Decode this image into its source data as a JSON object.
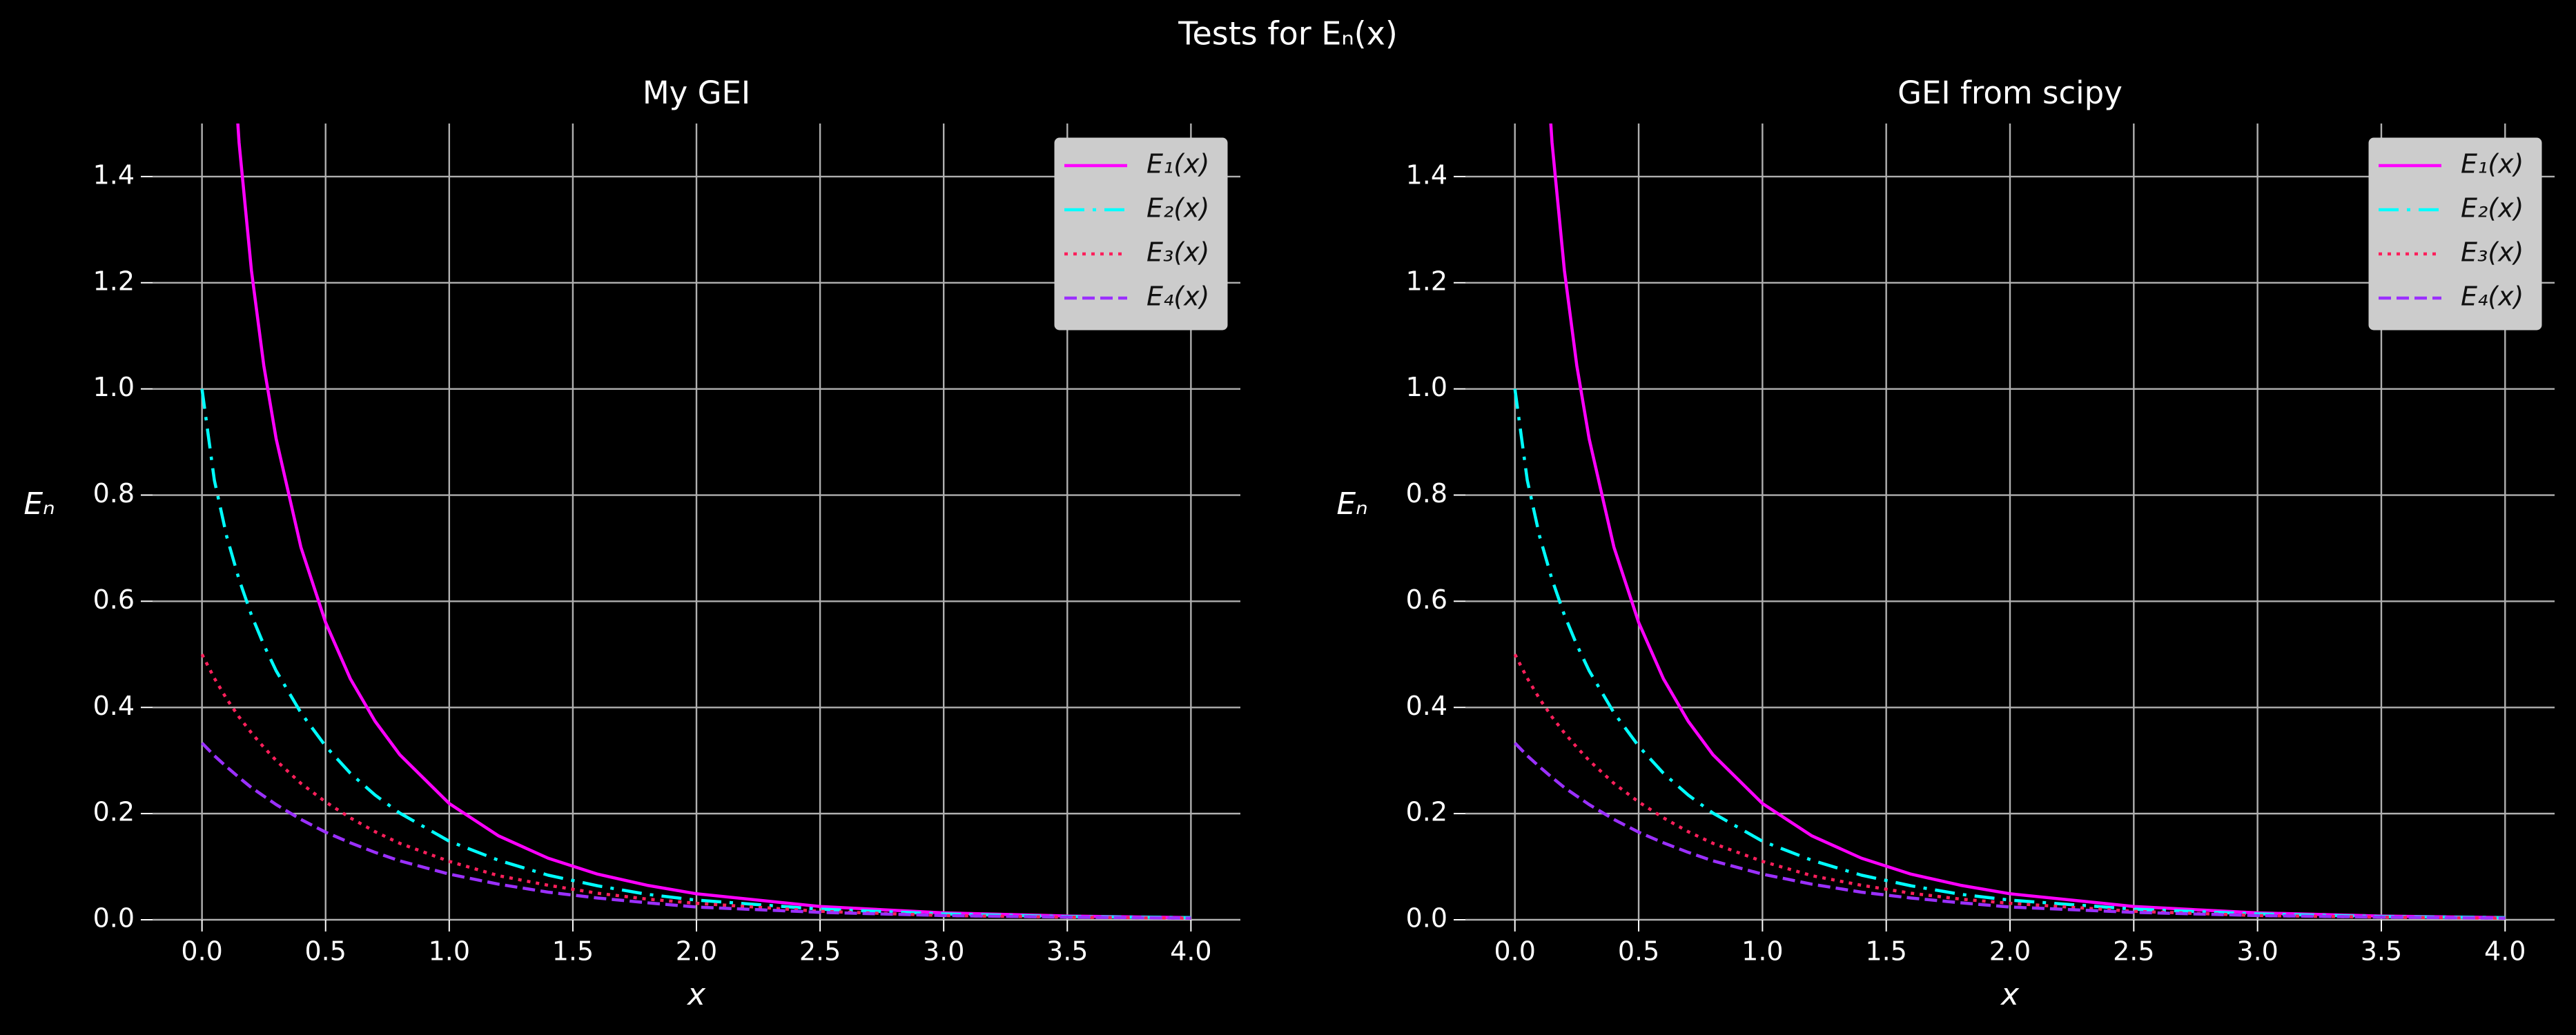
{
  "title": "Tests for Eₙ(x)",
  "chart_data": [
    {
      "type": "line",
      "title": "My GEI",
      "xlabel": "x",
      "ylabel": "Eₙ",
      "x": [
        0,
        0.05,
        0.1,
        0.15,
        0.2,
        0.25,
        0.3,
        0.4,
        0.5,
        0.6,
        0.7,
        0.8,
        1.0,
        1.2,
        1.4,
        1.6,
        1.8,
        2.0,
        2.5,
        3.0,
        3.5,
        4.0
      ],
      "series": [
        {
          "name": "E₁(x)",
          "color": "#ff00ff",
          "linestyle": "solid",
          "values": [
            null,
            null,
            1.823,
            1.464,
            1.223,
            1.044,
            0.906,
            0.702,
            0.56,
            0.454,
            0.374,
            0.311,
            0.219,
            0.158,
            0.116,
            0.086,
            0.065,
            0.049,
            0.025,
            0.013,
            0.007,
            0.004
          ]
        },
        {
          "name": "E₂(x)",
          "color": "#00ffff",
          "linestyle": "dashdot",
          "values": [
            1.0,
            0.828,
            0.722,
            0.641,
            0.574,
            0.518,
            0.469,
            0.39,
            0.327,
            0.276,
            0.235,
            0.201,
            0.148,
            0.112,
            0.084,
            0.064,
            0.048,
            0.037,
            0.02,
            0.011,
            0.006,
            0.004
          ]
        },
        {
          "name": "E₃(x)",
          "color": "#ff1f5b",
          "linestyle": "dotted",
          "values": [
            0.5,
            0.455,
            0.416,
            0.382,
            0.352,
            0.325,
            0.3,
            0.257,
            0.222,
            0.192,
            0.166,
            0.144,
            0.11,
            0.083,
            0.065,
            0.05,
            0.039,
            0.031,
            0.016,
            0.008,
            0.005,
            0.003
          ]
        },
        {
          "name": "E₄(x)",
          "color": "#9b30ff",
          "linestyle": "dashed",
          "values": [
            0.333,
            0.309,
            0.288,
            0.268,
            0.249,
            0.233,
            0.217,
            0.189,
            0.165,
            0.145,
            0.127,
            0.111,
            0.086,
            0.067,
            0.052,
            0.041,
            0.032,
            0.024,
            0.014,
            0.008,
            0.005,
            0.003
          ]
        }
      ],
      "xlim": [
        -0.2,
        4.2
      ],
      "xticks": [
        {
          "value": 0,
          "label": "0.0"
        },
        0.5,
        {
          "value": 1,
          "label": "1.0"
        },
        1.5,
        {
          "value": 2,
          "label": "2.0"
        },
        2.5,
        {
          "value": 3,
          "label": "3.0"
        },
        3.5,
        {
          "value": 4,
          "label": "4.0"
        }
      ],
      "ylim": [
        0,
        1.5
      ],
      "yticks": [
        {
          "value": 0,
          "label": "0.0"
        },
        0.2,
        0.4,
        0.6,
        0.8,
        {
          "value": 1,
          "label": "1.0"
        },
        1.2,
        1.4
      ],
      "grid": true,
      "legend": "upper right"
    },
    {
      "type": "line",
      "title": "GEI from scipy",
      "xlabel": "x",
      "ylabel": "Eₙ",
      "x": [
        0,
        0.05,
        0.1,
        0.15,
        0.2,
        0.25,
        0.3,
        0.4,
        0.5,
        0.6,
        0.7,
        0.8,
        1.0,
        1.2,
        1.4,
        1.6,
        1.8,
        2.0,
        2.5,
        3.0,
        3.5,
        4.0
      ],
      "series": [
        {
          "name": "E₁(x)",
          "color": "#ff00ff",
          "linestyle": "solid",
          "values": [
            null,
            null,
            1.823,
            1.464,
            1.223,
            1.044,
            0.906,
            0.702,
            0.56,
            0.454,
            0.374,
            0.311,
            0.219,
            0.158,
            0.116,
            0.086,
            0.065,
            0.049,
            0.025,
            0.013,
            0.007,
            0.004
          ]
        },
        {
          "name": "E₂(x)",
          "color": "#00ffff",
          "linestyle": "dashdot",
          "values": [
            1.0,
            0.828,
            0.722,
            0.641,
            0.574,
            0.518,
            0.469,
            0.39,
            0.327,
            0.276,
            0.235,
            0.201,
            0.148,
            0.112,
            0.084,
            0.064,
            0.048,
            0.037,
            0.02,
            0.011,
            0.006,
            0.004
          ]
        },
        {
          "name": "E₃(x)",
          "color": "#ff1f5b",
          "linestyle": "dotted",
          "values": [
            0.5,
            0.455,
            0.416,
            0.382,
            0.352,
            0.325,
            0.3,
            0.257,
            0.222,
            0.192,
            0.166,
            0.144,
            0.11,
            0.083,
            0.065,
            0.05,
            0.039,
            0.031,
            0.016,
            0.008,
            0.005,
            0.003
          ]
        },
        {
          "name": "E₄(x)",
          "color": "#9b30ff",
          "linestyle": "dashed",
          "values": [
            0.333,
            0.309,
            0.288,
            0.268,
            0.249,
            0.233,
            0.217,
            0.189,
            0.165,
            0.145,
            0.127,
            0.111,
            0.086,
            0.067,
            0.052,
            0.041,
            0.032,
            0.024,
            0.014,
            0.008,
            0.005,
            0.003
          ]
        }
      ],
      "xlim": [
        -0.2,
        4.2
      ],
      "xticks": [
        {
          "value": 0,
          "label": "0.0"
        },
        0.5,
        {
          "value": 1,
          "label": "1.0"
        },
        1.5,
        {
          "value": 2,
          "label": "2.0"
        },
        2.5,
        {
          "value": 3,
          "label": "3.0"
        },
        3.5,
        {
          "value": 4,
          "label": "4.0"
        }
      ],
      "ylim": [
        0,
        1.5
      ],
      "yticks": [
        {
          "value": 0,
          "label": "0.0"
        },
        0.2,
        0.4,
        0.6,
        0.8,
        {
          "value": 1,
          "label": "1.0"
        },
        1.2,
        1.4
      ],
      "grid": true,
      "legend": "upper right"
    }
  ]
}
